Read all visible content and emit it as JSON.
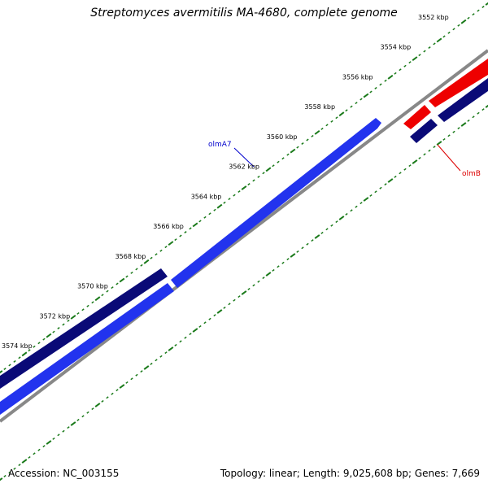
{
  "title": "Streptomyces avermitilis MA-4680, complete genome",
  "footer": {
    "accession": "Accession: NC_003155",
    "summary": "Topology: linear; Length: 9,025,608 bp; Genes: 7,669"
  },
  "ticks": [
    {
      "kbp": 3552,
      "label": "3552 kbp"
    },
    {
      "kbp": 3554,
      "label": "3554 kbp"
    },
    {
      "kbp": 3556,
      "label": "3556 kbp"
    },
    {
      "kbp": 3558,
      "label": "3558 kbp"
    },
    {
      "kbp": 3560,
      "label": "3560 kbp"
    },
    {
      "kbp": 3562,
      "label": "3562 kbp"
    },
    {
      "kbp": 3564,
      "label": "3564 kbp"
    },
    {
      "kbp": 3566,
      "label": "3566 kbp"
    },
    {
      "kbp": 3568,
      "label": "3568 kbp"
    },
    {
      "kbp": 3570,
      "label": "3570 kbp"
    },
    {
      "kbp": 3572,
      "label": "3572 kbp"
    },
    {
      "kbp": 3574,
      "label": "3574 kbp"
    }
  ],
  "genes": [
    {
      "name": "olmA7",
      "label": "olmA7",
      "color": "#0000cc"
    },
    {
      "name": "olmB",
      "label": "olmB",
      "color": "#dd0000"
    }
  ],
  "colors": {
    "ruler": "#1a7a1a",
    "backbone": "#888888",
    "forward_gene": "#2233ee",
    "reverse_gene": "#0a0a77",
    "highlight_gene": "#ee0000"
  }
}
